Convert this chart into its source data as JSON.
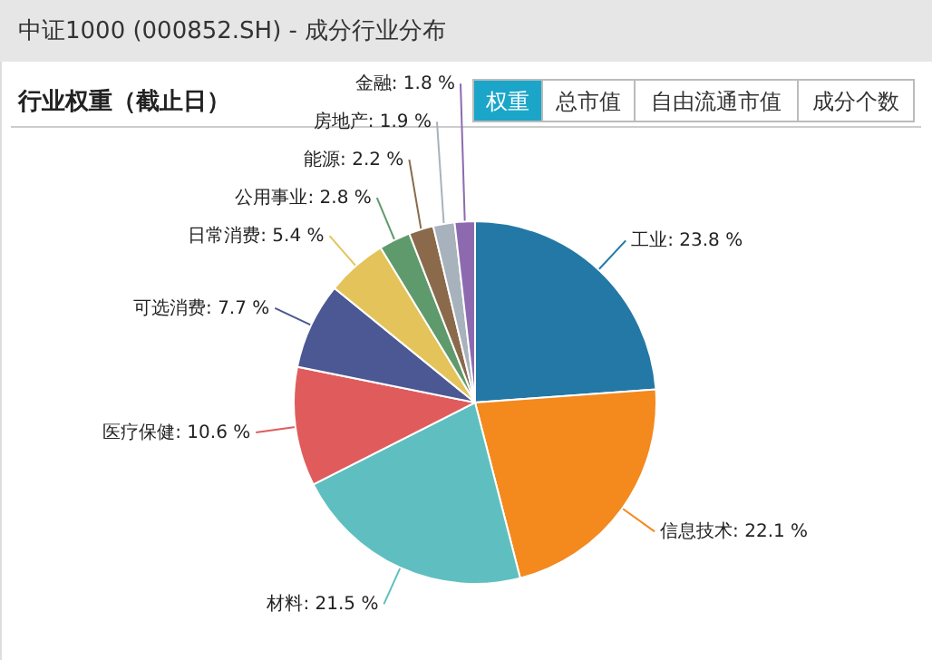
{
  "chart_data": {
    "type": "pie",
    "title": "中证1000 (000852.SH) - 成分行业分布",
    "subtitle": "行业权重（截止日）",
    "annotations": [
      "权重",
      "总市值",
      "自由流通市值",
      "成分个数"
    ],
    "categories": [
      "工业",
      "信息技术",
      "材料",
      "医疗保健",
      "可选消费",
      "日常消费",
      "公用事业",
      "能源",
      "房地产",
      "金融"
    ],
    "values": [
      23.8,
      22.1,
      21.5,
      10.6,
      7.7,
      5.4,
      2.8,
      2.2,
      1.9,
      1.8
    ],
    "value_labels": [
      "23.8 %",
      "22.1 %",
      "21.5 %",
      "10.6 %",
      "7.7 %",
      "5.4 %",
      "2.8 %",
      "2.2 %",
      "1.9 %",
      "1.8 %"
    ],
    "colors": [
      "#2378a6",
      "#f4891e",
      "#5fbfc0",
      "#e05c5c",
      "#4b5893",
      "#e4c45a",
      "#5f9a6c",
      "#8a6a4b",
      "#a8b2bc",
      "#8d6ab0"
    ]
  }
}
